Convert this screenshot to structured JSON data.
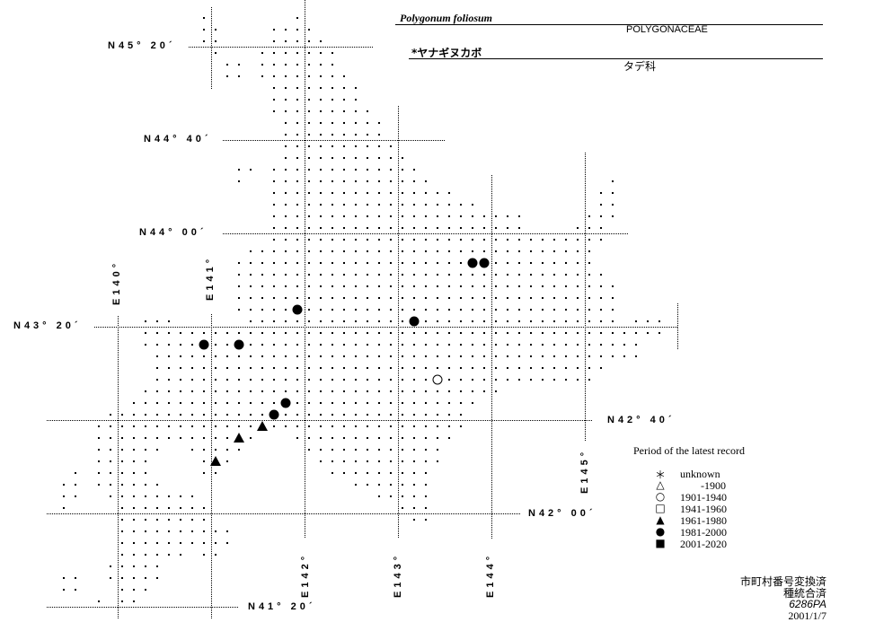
{
  "header": {
    "scientific_name": "Polygonum foliosum",
    "family_latin": "POLYGONACEAE",
    "japanese_name": "*ヤナギヌカボ",
    "family_japanese": "タデ科"
  },
  "graticule": {
    "latitudes": [
      {
        "value": 45.3333,
        "label": "N45° 20´"
      },
      {
        "value": 44.6667,
        "label": "N44° 40´"
      },
      {
        "value": 44.0,
        "label": "N44° 00´"
      },
      {
        "value": 43.3333,
        "label": "N43° 20´"
      },
      {
        "value": 42.6667,
        "label": "N42° 40´"
      },
      {
        "value": 42.0,
        "label": "N42° 00´"
      },
      {
        "value": 41.3333,
        "label": "N41° 20´"
      }
    ],
    "longitudes": [
      {
        "value": 140,
        "label": "E140°"
      },
      {
        "value": 141,
        "label": "E141°"
      },
      {
        "value": 142,
        "label": "E142°"
      },
      {
        "value": 143,
        "label": "E143°"
      },
      {
        "value": 144,
        "label": "E144°"
      },
      {
        "value": 145,
        "label": "E145°"
      }
    ]
  },
  "legend": {
    "title": "Period of the latest record",
    "items": [
      {
        "symbol": "asterisk",
        "label": "unknown"
      },
      {
        "symbol": "open-triangle",
        "label": "-1900"
      },
      {
        "symbol": "open-circle",
        "label": "1901-1940"
      },
      {
        "symbol": "open-square",
        "label": "1941-1960"
      },
      {
        "symbol": "filled-triangle",
        "label": "1961-1980"
      },
      {
        "symbol": "filled-circle",
        "label": "1981-2000"
      },
      {
        "symbol": "filled-square",
        "label": "2001-2020"
      }
    ]
  },
  "records": [
    {
      "lon": 143.798,
      "lat": 43.788,
      "period": "1981-2000"
    },
    {
      "lon": 143.923,
      "lat": 43.788,
      "period": "1981-2000"
    },
    {
      "lon": 141.923,
      "lat": 43.455,
      "period": "1981-2000"
    },
    {
      "lon": 143.173,
      "lat": 43.372,
      "period": "1981-2000"
    },
    {
      "lon": 140.923,
      "lat": 43.205,
      "period": "1981-2000"
    },
    {
      "lon": 141.298,
      "lat": 43.205,
      "period": "1981-2000"
    },
    {
      "lon": 143.423,
      "lat": 42.955,
      "period": "1901-1940"
    },
    {
      "lon": 141.798,
      "lat": 42.788,
      "period": "1981-2000"
    },
    {
      "lon": 141.673,
      "lat": 42.705,
      "period": "1981-2000"
    },
    {
      "lon": 141.548,
      "lat": 42.622,
      "period": "1961-1980"
    },
    {
      "lon": 141.298,
      "lat": 42.538,
      "period": "1961-1980"
    },
    {
      "lon": 141.048,
      "lat": 42.372,
      "period": "1961-1980"
    }
  ],
  "footer": {
    "note1": "市町村番号変換済",
    "note2": "種統合済",
    "code": "6286PA",
    "date": "2001/1/7"
  }
}
